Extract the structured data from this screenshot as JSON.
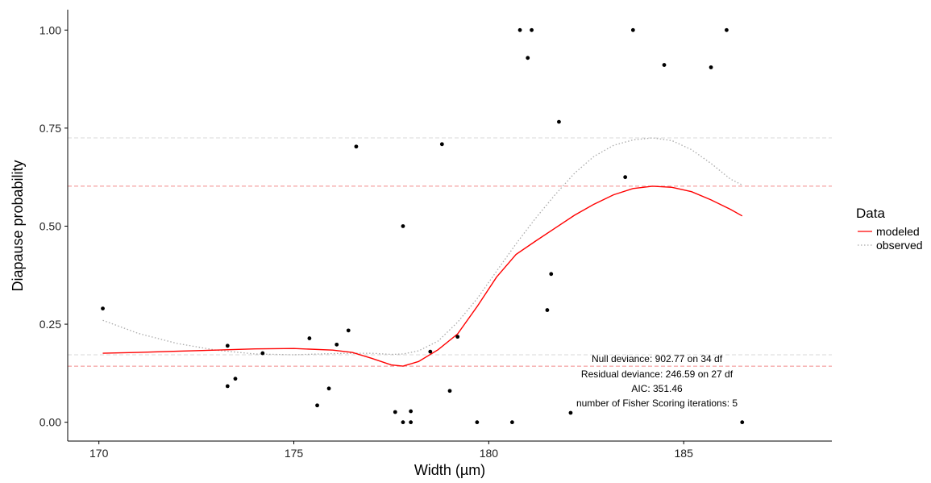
{
  "chart_data": {
    "type": "scatter",
    "xlabel": "Width (µm)",
    "ylabel": "Diapause probability",
    "xlim": [
      169.2,
      188.8
    ],
    "ylim": [
      -0.048,
      1.052
    ],
    "x_ticks": [
      170,
      175,
      180,
      185
    ],
    "x_tick_labels": [
      "170",
      "175",
      "180",
      "185"
    ],
    "y_ticks": [
      0.0,
      0.25,
      0.5,
      0.75,
      1.0
    ],
    "y_tick_labels": [
      "0.00",
      "0.25",
      "0.50",
      "0.75",
      "1.00"
    ],
    "grid": false,
    "points": [
      {
        "x": 170.1,
        "y": 0.29
      },
      {
        "x": 173.3,
        "y": 0.195
      },
      {
        "x": 173.3,
        "y": 0.092
      },
      {
        "x": 173.5,
        "y": 0.111
      },
      {
        "x": 174.2,
        "y": 0.176
      },
      {
        "x": 175.4,
        "y": 0.214
      },
      {
        "x": 175.6,
        "y": 0.043
      },
      {
        "x": 175.9,
        "y": 0.086
      },
      {
        "x": 176.1,
        "y": 0.198
      },
      {
        "x": 176.4,
        "y": 0.234
      },
      {
        "x": 176.6,
        "y": 0.703
      },
      {
        "x": 177.6,
        "y": 0.026
      },
      {
        "x": 177.8,
        "y": 0.0
      },
      {
        "x": 177.8,
        "y": 0.5
      },
      {
        "x": 178.0,
        "y": 0.028
      },
      {
        "x": 178.0,
        "y": 0.0
      },
      {
        "x": 178.5,
        "y": 0.18
      },
      {
        "x": 178.8,
        "y": 0.709
      },
      {
        "x": 179.0,
        "y": 0.08
      },
      {
        "x": 179.2,
        "y": 0.218
      },
      {
        "x": 179.7,
        "y": 0.0
      },
      {
        "x": 180.6,
        "y": 0.0
      },
      {
        "x": 180.8,
        "y": 1.0
      },
      {
        "x": 181.0,
        "y": 0.929
      },
      {
        "x": 181.1,
        "y": 1.0
      },
      {
        "x": 181.5,
        "y": 0.286
      },
      {
        "x": 181.6,
        "y": 0.378
      },
      {
        "x": 181.8,
        "y": 0.766
      },
      {
        "x": 182.1,
        "y": 0.024
      },
      {
        "x": 183.5,
        "y": 0.625
      },
      {
        "x": 183.7,
        "y": 1.0
      },
      {
        "x": 184.5,
        "y": 0.911
      },
      {
        "x": 185.7,
        "y": 0.905
      },
      {
        "x": 186.1,
        "y": 1.0
      },
      {
        "x": 186.5,
        "y": 0.0
      }
    ],
    "series": [
      {
        "name": "modeled",
        "color": "#ff0000",
        "style": "solid",
        "x": [
          170.1,
          171,
          172,
          173,
          174,
          175,
          176,
          176.5,
          177,
          177.5,
          177.8,
          178.2,
          178.7,
          179.2,
          179.7,
          180.2,
          180.7,
          181.2,
          181.7,
          182.2,
          182.7,
          183.2,
          183.7,
          184.2,
          184.7,
          185.2,
          185.7,
          186.2,
          186.5
        ],
        "y": [
          0.176,
          0.178,
          0.181,
          0.184,
          0.187,
          0.188,
          0.184,
          0.178,
          0.163,
          0.146,
          0.143,
          0.155,
          0.185,
          0.225,
          0.295,
          0.37,
          0.428,
          0.462,
          0.495,
          0.528,
          0.556,
          0.58,
          0.596,
          0.602,
          0.599,
          0.588,
          0.567,
          0.543,
          0.526
        ]
      },
      {
        "name": "observed",
        "color": "#aaaaaa",
        "style": "dotted",
        "x": [
          170.1,
          171,
          172,
          173,
          174,
          175,
          176,
          176.5,
          177,
          177.5,
          177.8,
          178.2,
          178.7,
          179.2,
          179.7,
          180.2,
          180.7,
          181.2,
          181.7,
          182.2,
          182.7,
          183.2,
          183.7,
          184.2,
          184.7,
          185.2,
          185.7,
          186.2,
          186.5
        ],
        "y": [
          0.26,
          0.227,
          0.201,
          0.184,
          0.174,
          0.172,
          0.175,
          0.176,
          0.176,
          0.173,
          0.174,
          0.182,
          0.207,
          0.255,
          0.315,
          0.385,
          0.455,
          0.52,
          0.58,
          0.635,
          0.678,
          0.706,
          0.72,
          0.725,
          0.718,
          0.695,
          0.66,
          0.62,
          0.605
        ]
      }
    ],
    "hlines": [
      {
        "y": 0.725,
        "color": "#d9d9d9"
      },
      {
        "y": 0.602,
        "color": "#f28a8a"
      },
      {
        "y": 0.172,
        "color": "#d9d9d9"
      },
      {
        "y": 0.143,
        "color": "#f28a8a"
      }
    ],
    "legend": {
      "title": "Data",
      "position": "right",
      "entries": [
        {
          "label": "modeled",
          "color": "#ff0000",
          "style": "solid"
        },
        {
          "label": "observed",
          "color": "#aaaaaa",
          "style": "dotted"
        }
      ]
    },
    "annotations": [
      "Null deviance: 902.77 on 34 df",
      "Residual deviance: 246.59 on 27 df",
      "AIC: 351.46",
      "number of Fisher Scoring iterations: 5"
    ]
  }
}
